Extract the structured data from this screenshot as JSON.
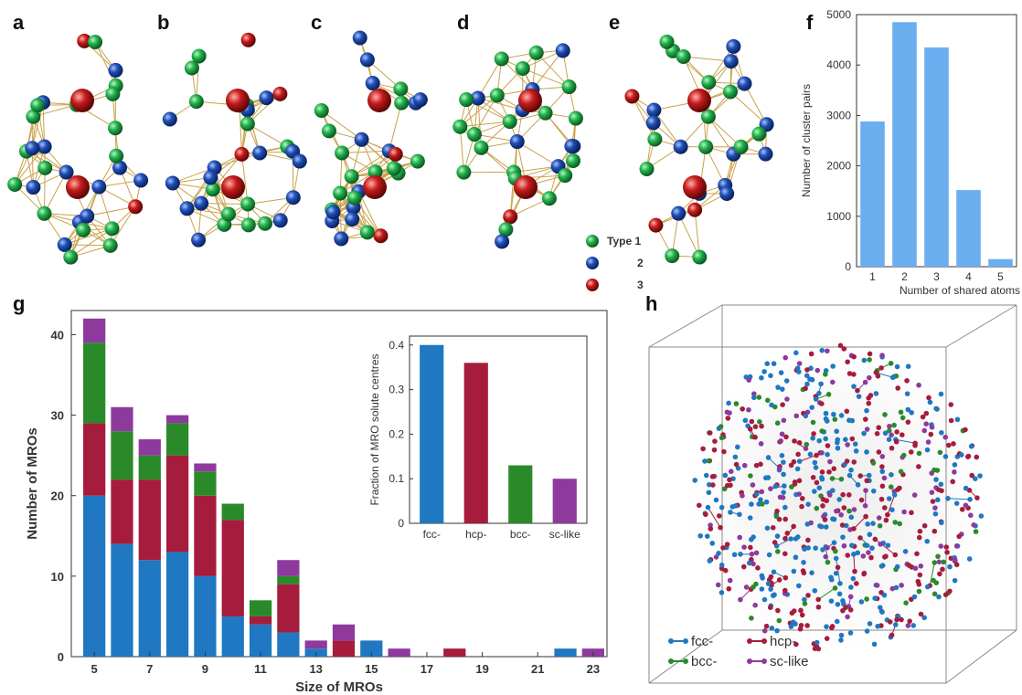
{
  "panels": {
    "a": "a",
    "b": "b",
    "c": "c",
    "d": "d",
    "e": "e",
    "f": "f",
    "g": "g",
    "h": "h"
  },
  "type_legend": {
    "items": [
      {
        "label": "Type 1",
        "color": "#22b14c"
      },
      {
        "label": "2",
        "color": "#1f4fb5"
      },
      {
        "label": "3",
        "color": "#c41b1b"
      }
    ]
  },
  "colors": {
    "bond": "#c9a24a",
    "green_atom": "#22b14c",
    "blue_atom": "#1f4fb5",
    "red_atom": "#c41b1b",
    "f_bar": "#6aaef0",
    "fcc": "#1f78c1",
    "hcp": "#a61c3c",
    "bcc": "#2a8a2a",
    "sc": "#8e3a9d"
  },
  "chart_data": [
    {
      "id": "f",
      "type": "bar",
      "categories": [
        "1",
        "2",
        "3",
        "4",
        "5"
      ],
      "values": [
        2880,
        4850,
        4350,
        1520,
        150
      ],
      "xlabel": "Number of shared atoms",
      "ylabel": "Number of cluster pairs",
      "ylim": [
        0,
        5000
      ],
      "yticks": [
        "0",
        "1000",
        "2000",
        "3000",
        "4000",
        "5000"
      ],
      "grid": false
    },
    {
      "id": "g",
      "type": "bar",
      "stacked": true,
      "x": [
        5,
        6,
        7,
        8,
        9,
        10,
        11,
        12,
        13,
        14,
        15,
        16,
        17,
        18,
        19,
        20,
        21,
        22,
        23
      ],
      "series": [
        {
          "name": "fcc-",
          "values": [
            20,
            14,
            12,
            13,
            10,
            5,
            4,
            3,
            1,
            0,
            2,
            0,
            0,
            0,
            0,
            0,
            0,
            1,
            0
          ]
        },
        {
          "name": "hcp-",
          "values": [
            9,
            8,
            10,
            12,
            10,
            12,
            1,
            6,
            0,
            2,
            0,
            0,
            0,
            1,
            0,
            0,
            0,
            0,
            0
          ]
        },
        {
          "name": "bcc-",
          "values": [
            10,
            6,
            3,
            4,
            3,
            2,
            2,
            1,
            0,
            0,
            0,
            0,
            0,
            0,
            0,
            0,
            0,
            0,
            0
          ]
        },
        {
          "name": "sc-like",
          "values": [
            3,
            3,
            2,
            1,
            1,
            0,
            0,
            2,
            1,
            2,
            0,
            1,
            0,
            0,
            0,
            0,
            0,
            0,
            1
          ]
        }
      ],
      "xticks": [
        "5",
        "7",
        "9",
        "11",
        "13",
        "15",
        "17",
        "19",
        "21",
        "23"
      ],
      "yticks": [
        "0",
        "10",
        "20",
        "30",
        "40"
      ],
      "xlabel": "Size of MROs",
      "ylabel": "Number of MROs",
      "ylim": [
        0,
        43
      ],
      "grid": false
    },
    {
      "id": "g-inset",
      "type": "bar",
      "categories": [
        "fcc-",
        "hcp-",
        "bcc-",
        "sc-like"
      ],
      "values": [
        0.4,
        0.36,
        0.13,
        0.1
      ],
      "ylabel": "Fraction of MRO solute centres",
      "ylim": [
        0,
        0.42
      ],
      "yticks": [
        "0",
        "0.1",
        "0.2",
        "0.3",
        "0.4"
      ],
      "grid": false
    }
  ],
  "h_legend": {
    "items": [
      {
        "label": "fcc-",
        "color": "#1f78c1"
      },
      {
        "label": "hcp-",
        "color": "#a61c3c"
      },
      {
        "label": "bcc-",
        "color": "#2a8a2a"
      },
      {
        "label": "sc-like",
        "color": "#8e3a9d"
      }
    ]
  }
}
